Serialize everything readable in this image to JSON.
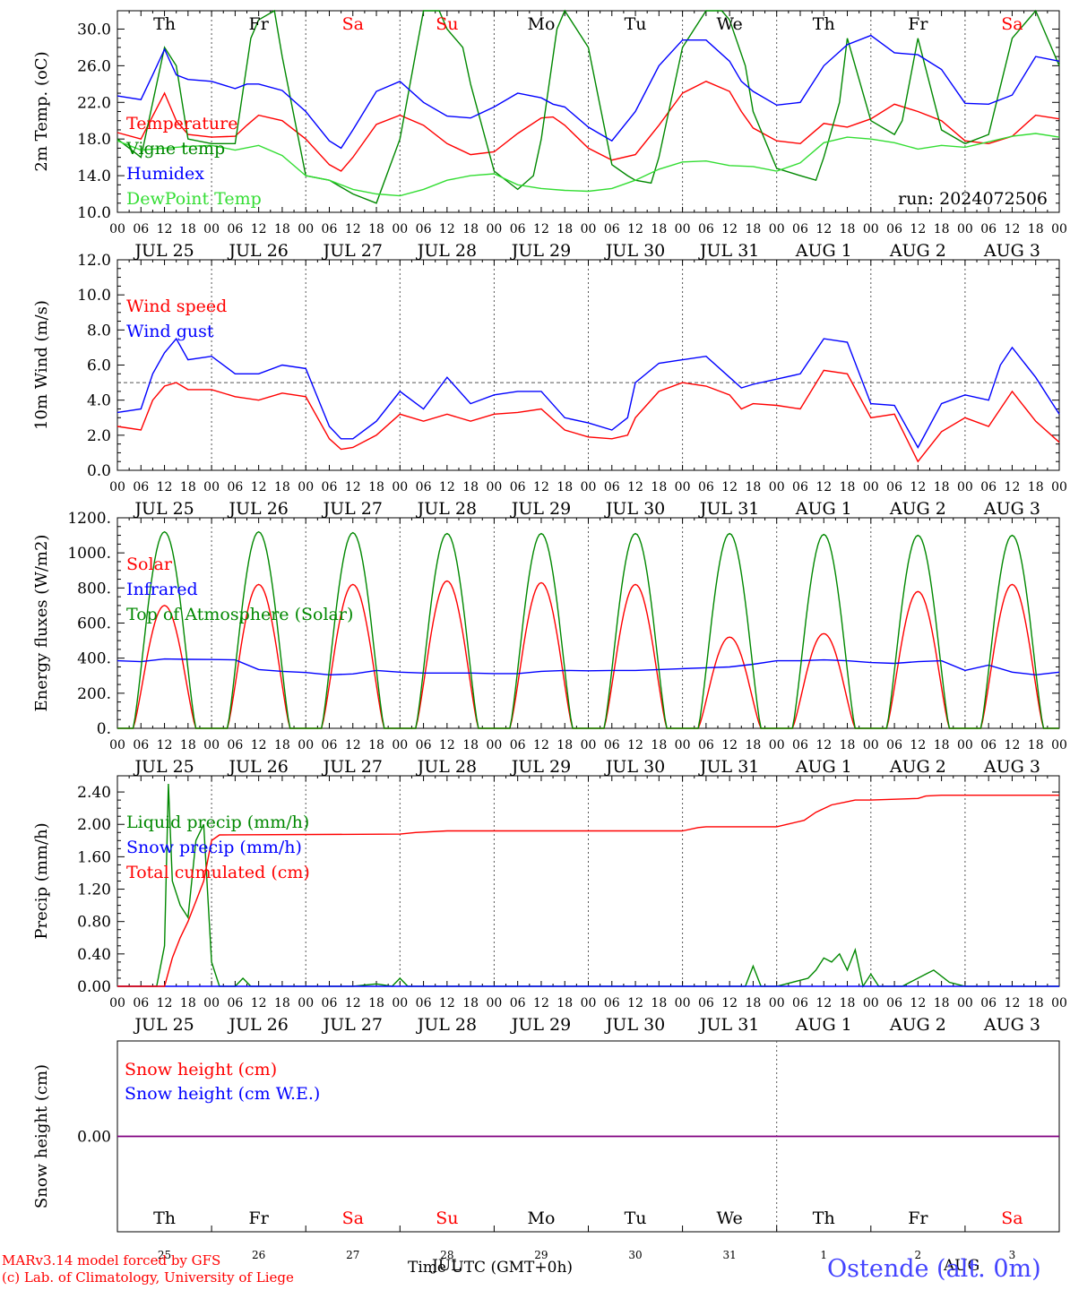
{
  "colors": {
    "red": "#ff0000",
    "green": "#008800",
    "blue": "#0000ff",
    "lime": "#33dd33",
    "purple": "#800080",
    "axis": "#000000",
    "grid": "#555555"
  },
  "days": {
    "names": [
      "Th",
      "Fr",
      "Sa",
      "Su",
      "Mo",
      "Tu",
      "We",
      "Th",
      "Fr",
      "Sa"
    ],
    "weekend": [
      false,
      false,
      true,
      true,
      false,
      false,
      false,
      false,
      false,
      true
    ],
    "dates": [
      "JUL 25",
      "JUL 26",
      "JUL 27",
      "JUL 28",
      "JUL 29",
      "JUL 30",
      "JUL 31",
      "AUG  1",
      "AUG  2",
      "AUG  3"
    ],
    "nums": [
      "25",
      "26",
      "27",
      "28",
      "29",
      "30",
      "31",
      "1",
      "2",
      "3"
    ],
    "hour_ticks": [
      "00",
      "06",
      "12",
      "18"
    ]
  },
  "chart_data": [
    {
      "type": "line",
      "ylabel": "2m Temp. (oC)",
      "ylim": [
        10,
        32
      ],
      "yticks": [
        "10.0",
        "14.0",
        "18.0",
        "22.0",
        "26.0",
        "30.0"
      ],
      "annotation": "run: 2024072506",
      "x_unit": "hours since JUL 25 00 UTC",
      "series": [
        {
          "name": "Temperature",
          "color": "#ff0000",
          "x": [
            0,
            6,
            9,
            12,
            15,
            18,
            24,
            30,
            33,
            36,
            42,
            48,
            54,
            57,
            60,
            66,
            72,
            78,
            84,
            90,
            96,
            102,
            108,
            111,
            114,
            120,
            126,
            132,
            138,
            144,
            150,
            156,
            159,
            162,
            168,
            174,
            180,
            186,
            192,
            198,
            204,
            210,
            216,
            222,
            228,
            234,
            240
          ],
          "values": [
            18.7,
            18,
            20.5,
            23,
            20,
            18.5,
            18.2,
            18.3,
            19.5,
            20.6,
            20,
            18,
            15.2,
            14.5,
            16,
            19.6,
            20.6,
            19.5,
            17.5,
            16.3,
            16.6,
            18.6,
            20.3,
            20.4,
            19.5,
            17,
            15.7,
            16.3,
            19.5,
            23,
            24.3,
            23.2,
            21,
            19.2,
            17.8,
            17.5,
            19.7,
            19.3,
            20.2,
            21.8,
            21,
            20,
            17.8,
            17.5,
            18.3,
            20.6,
            20.2
          ]
        },
        {
          "name": "Vigne temp",
          "color": "#008800",
          "x": [
            0,
            6,
            12,
            15,
            18,
            24,
            30,
            34,
            36,
            40,
            42,
            48,
            54,
            60,
            66,
            72,
            78,
            82,
            84,
            88,
            90,
            96,
            102,
            106,
            108,
            112,
            114,
            120,
            126,
            130,
            132,
            136,
            138,
            144,
            150,
            154,
            156,
            160,
            162,
            168,
            174,
            178,
            180,
            184,
            186,
            192,
            198,
            200,
            204,
            210,
            216,
            222,
            228,
            234,
            240
          ],
          "values": [
            18,
            16,
            28,
            26,
            18,
            17.5,
            17.5,
            29,
            31,
            32,
            27,
            14,
            13.5,
            12,
            11,
            18,
            32,
            32,
            30,
            28,
            24,
            14.5,
            12.5,
            14,
            18,
            30,
            32,
            28,
            15.2,
            14,
            13.5,
            13.2,
            16,
            28,
            32,
            32,
            31,
            26,
            21,
            14.8,
            14,
            13.5,
            16,
            22,
            29,
            20,
            18.5,
            20,
            29,
            19,
            17.5,
            18.5,
            29,
            33,
            26
          ]
        },
        {
          "name": "Humidex",
          "color": "#0000ff",
          "x": [
            0,
            6,
            9,
            12,
            15,
            18,
            24,
            30,
            33,
            36,
            42,
            48,
            54,
            57,
            60,
            66,
            72,
            78,
            84,
            90,
            96,
            102,
            108,
            111,
            114,
            120,
            126,
            132,
            138,
            144,
            150,
            156,
            159,
            162,
            168,
            174,
            180,
            186,
            192,
            198,
            204,
            210,
            216,
            222,
            228,
            234,
            240
          ],
          "values": [
            22.7,
            22.3,
            25,
            27.8,
            25,
            24.5,
            24.3,
            23.5,
            24,
            24,
            23.3,
            21,
            17.8,
            17,
            19,
            23.2,
            24.3,
            22,
            20.5,
            20.3,
            21.5,
            23,
            22.5,
            21.8,
            21.5,
            19.3,
            17.8,
            21,
            26,
            28.8,
            28.8,
            26.5,
            24.3,
            23.2,
            21.7,
            22,
            26,
            28.3,
            29.3,
            27.4,
            27.2,
            25.6,
            21.9,
            21.8,
            22.8,
            27,
            26.5
          ]
        },
        {
          "name": "DewPoint Temp",
          "color": "#33dd33",
          "x": [
            0,
            6,
            12,
            18,
            24,
            30,
            36,
            42,
            48,
            54,
            60,
            66,
            72,
            78,
            84,
            90,
            96,
            102,
            108,
            114,
            120,
            126,
            132,
            138,
            144,
            150,
            156,
            162,
            168,
            174,
            180,
            186,
            192,
            198,
            204,
            210,
            216,
            222,
            228,
            234,
            240
          ],
          "values": [
            17.8,
            16.8,
            17,
            17.2,
            17.3,
            16.8,
            17.3,
            16.2,
            14,
            13.5,
            12.5,
            12,
            11.8,
            12.5,
            13.5,
            14,
            14.2,
            13,
            12.6,
            12.4,
            12.3,
            12.6,
            13.5,
            14.7,
            15.5,
            15.6,
            15.1,
            15,
            14.5,
            15.4,
            17.6,
            18.2,
            18,
            17.6,
            16.9,
            17.3,
            17.1,
            17.7,
            18.3,
            18.6,
            18.2
          ]
        }
      ]
    },
    {
      "type": "line",
      "ylabel": "10m Wind (m/s)",
      "ylim": [
        0,
        12
      ],
      "yticks": [
        "0.0",
        "2.0",
        "4.0",
        "6.0",
        "8.0",
        "10.0",
        "12.0"
      ],
      "reference_line": 5,
      "x_unit": "hours since JUL 25 00 UTC",
      "series": [
        {
          "name": "Wind speed",
          "color": "#ff0000",
          "x": [
            0,
            6,
            9,
            12,
            15,
            18,
            24,
            30,
            36,
            42,
            48,
            54,
            57,
            60,
            66,
            72,
            78,
            84,
            90,
            96,
            102,
            108,
            114,
            120,
            126,
            130,
            132,
            138,
            144,
            150,
            156,
            159,
            162,
            168,
            174,
            180,
            186,
            192,
            198,
            204,
            210,
            216,
            222,
            225,
            228,
            234,
            240
          ],
          "values": [
            2.5,
            2.3,
            4,
            4.8,
            5,
            4.6,
            4.6,
            4.2,
            4,
            4.4,
            4.2,
            1.8,
            1.2,
            1.3,
            2,
            3.2,
            2.8,
            3.2,
            2.8,
            3.2,
            3.3,
            3.5,
            2.3,
            1.9,
            1.8,
            2,
            3,
            4.5,
            5,
            4.8,
            4.3,
            3.5,
            3.8,
            3.7,
            3.5,
            5.7,
            5.5,
            3,
            3.2,
            0.5,
            2.2,
            3,
            2.5,
            3.5,
            4.5,
            2.8,
            1.6
          ]
        },
        {
          "name": "Wind gust",
          "color": "#0000ff",
          "x": [
            0,
            6,
            9,
            12,
            15,
            18,
            24,
            30,
            36,
            42,
            48,
            54,
            57,
            60,
            66,
            72,
            78,
            84,
            90,
            96,
            102,
            108,
            114,
            120,
            126,
            130,
            132,
            138,
            144,
            150,
            156,
            159,
            162,
            168,
            174,
            180,
            186,
            192,
            198,
            204,
            210,
            216,
            222,
            225,
            228,
            234,
            240
          ],
          "values": [
            3.3,
            3.5,
            5.5,
            6.7,
            7.5,
            6.3,
            6.5,
            5.5,
            5.5,
            6,
            5.8,
            2.5,
            1.8,
            1.8,
            2.8,
            4.5,
            3.5,
            5.3,
            3.8,
            4.3,
            4.5,
            4.5,
            3,
            2.7,
            2.3,
            3,
            5,
            6.1,
            6.3,
            6.5,
            5.3,
            4.7,
            4.9,
            5.2,
            5.5,
            7.5,
            7.3,
            3.8,
            3.7,
            1.3,
            3.8,
            4.3,
            4,
            6,
            7,
            5.3,
            3.2
          ]
        }
      ]
    },
    {
      "type": "line",
      "ylabel": "Energy fluxes (W/m2)",
      "ylim": [
        0,
        1200
      ],
      "yticks": [
        "0.",
        "200.",
        "400.",
        "600.",
        "800.",
        "1000.",
        "1200."
      ],
      "x_unit": "hours since JUL 25 00 UTC",
      "series": [
        {
          "name": "Solar",
          "color": "#ff0000",
          "day_peaks": [
            700,
            820,
            820,
            840,
            830,
            820,
            520,
            540,
            780,
            820
          ]
        },
        {
          "name": "Infrared",
          "color": "#0000ff",
          "x": [
            0,
            6,
            12,
            18,
            24,
            30,
            36,
            42,
            48,
            54,
            60,
            66,
            72,
            78,
            84,
            90,
            96,
            102,
            108,
            114,
            120,
            126,
            132,
            138,
            144,
            150,
            156,
            162,
            168,
            174,
            180,
            186,
            192,
            198,
            204,
            210,
            216,
            222,
            228,
            234,
            240
          ],
          "values": [
            385,
            380,
            395,
            393,
            392,
            390,
            335,
            325,
            318,
            305,
            310,
            330,
            320,
            315,
            315,
            315,
            312,
            312,
            325,
            330,
            328,
            330,
            330,
            335,
            340,
            345,
            350,
            365,
            385,
            385,
            390,
            385,
            375,
            370,
            380,
            385,
            330,
            360,
            320,
            305,
            320
          ]
        },
        {
          "name": "Top of Atmosphere (Solar)",
          "color": "#008800",
          "day_peaks": [
            1120,
            1120,
            1115,
            1110,
            1110,
            1110,
            1110,
            1105,
            1100,
            1100
          ]
        }
      ]
    },
    {
      "type": "line",
      "ylabel": "Precip (mm/h)",
      "ylim": [
        0,
        2.6
      ],
      "yticks": [
        "0.00",
        "0.40",
        "0.80",
        "1.20",
        "1.60",
        "2.00",
        "2.40"
      ],
      "x_unit": "hours since JUL 25 00 UTC",
      "series": [
        {
          "name": "Liquid precip (mm/h)",
          "color": "#008800",
          "x": [
            0,
            10,
            12,
            13,
            14,
            16,
            18,
            20,
            22,
            24,
            26,
            30,
            32,
            34,
            60,
            66,
            70,
            72,
            74,
            150,
            160,
            162,
            164,
            168,
            176,
            178,
            180,
            182,
            184,
            186,
            188,
            190,
            192,
            194,
            200,
            206,
            208,
            212,
            216,
            240
          ],
          "values": [
            0,
            0,
            0.5,
            2.5,
            1.3,
            1,
            0.85,
            1.8,
            2,
            0.3,
            0,
            0,
            0.1,
            0,
            0,
            0.03,
            0,
            0.1,
            0,
            0,
            0,
            0.25,
            0,
            0,
            0.1,
            0.2,
            0.35,
            0.3,
            0.4,
            0.2,
            0.45,
            0,
            0.15,
            0,
            0,
            0.15,
            0.2,
            0.05,
            0,
            0
          ]
        },
        {
          "name": "Snow precip (mm/h)",
          "color": "#0000ff",
          "x": [
            0,
            240
          ],
          "values": [
            0,
            0
          ]
        },
        {
          "name": "Total cumulated (cm)",
          "color": "#ff0000",
          "x": [
            0,
            12,
            14,
            16,
            18,
            20,
            22,
            24,
            26,
            72,
            76,
            84,
            96,
            120,
            144,
            148,
            150,
            156,
            168,
            175,
            178,
            182,
            186,
            188,
            192,
            204,
            206,
            210,
            216,
            240
          ],
          "values": [
            0,
            0,
            0.35,
            0.6,
            0.8,
            1.05,
            1.3,
            1.8,
            1.87,
            1.88,
            1.9,
            1.92,
            1.92,
            1.92,
            1.92,
            1.96,
            1.97,
            1.97,
            1.97,
            2.05,
            2.15,
            2.24,
            2.28,
            2.3,
            2.3,
            2.32,
            2.35,
            2.36,
            2.36,
            2.36
          ]
        }
      ]
    },
    {
      "type": "line",
      "ylabel": "Snow height (cm)",
      "yticks": [
        "0.00"
      ],
      "series": [
        {
          "name": "Snow height (cm)",
          "color": "#ff0000",
          "x": [
            0,
            240
          ],
          "values": [
            0,
            0
          ]
        },
        {
          "name": "Snow height (cm W.E.)",
          "color": "#0000ff",
          "x": [
            0,
            240
          ],
          "values": [
            0,
            0
          ]
        }
      ]
    }
  ],
  "footer": {
    "line1": "MARv3.14 model forced by GFS",
    "line2": "(c) Lab. of Climatology, University of Liege",
    "xlabel": "Time UTC (GMT+0h)",
    "overlap_label": "JUL",
    "aug_label": "AUG",
    "station": "Ostende (alt. 0m)"
  }
}
